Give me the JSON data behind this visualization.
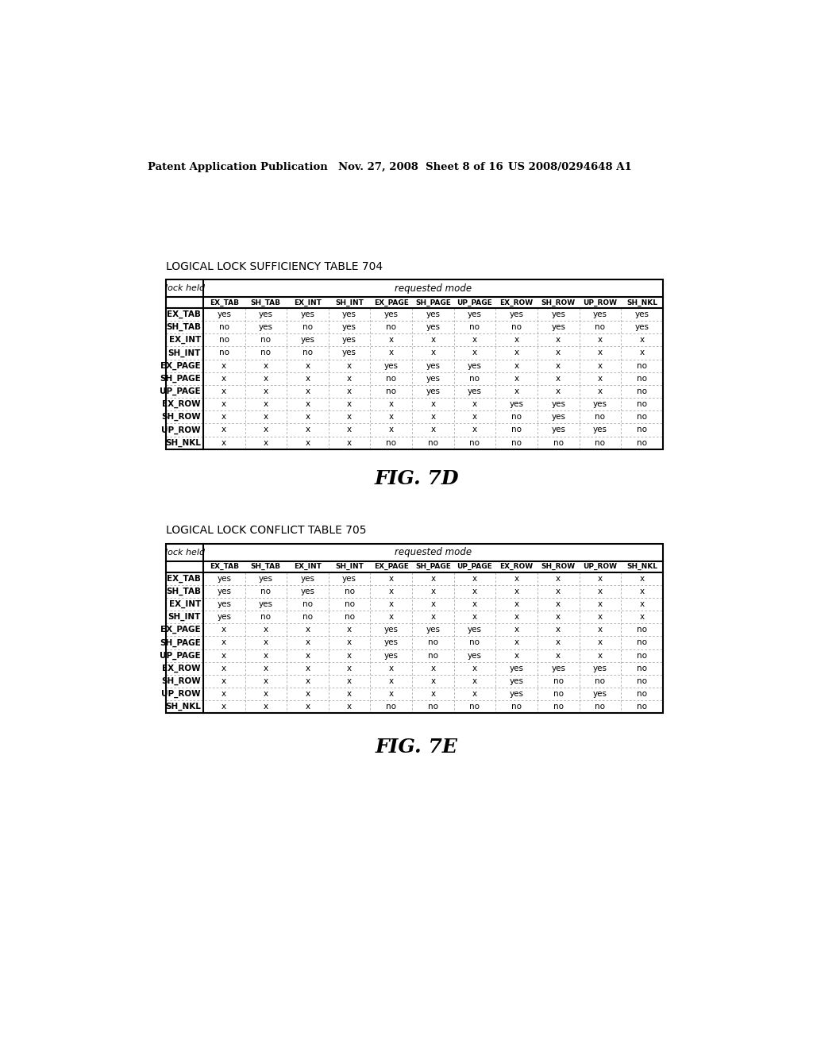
{
  "header_left": "Patent Application Publication",
  "header_mid": "Nov. 27, 2008  Sheet 8 of 16",
  "header_right": "US 2008/0294648 A1",
  "table1_title": "LOGICAL LOCK SUFFICIENCY TABLE 704",
  "table2_title": "LOGICAL LOCK CONFLICT TABLE 705",
  "fig1_label": "FIG. 7D",
  "fig2_label": "FIG. 7E",
  "col_headers": [
    "EX_TAB",
    "SH_TAB",
    "EX_INT",
    "SH_INT",
    "EX_PAGE",
    "SH_PAGE",
    "UP_PAGE",
    "EX_ROW",
    "SH_ROW",
    "UP_ROW",
    "SH_NKL"
  ],
  "row_labels": [
    "EX_TAB",
    "SH_TAB",
    "EX_INT",
    "SH_INT",
    "EX_PAGE",
    "SH_PAGE",
    "UP_PAGE",
    "EX_ROW",
    "SH_ROW",
    "UP_ROW",
    "SH_NKL"
  ],
  "table1_data": [
    [
      "yes",
      "yes",
      "yes",
      "yes",
      "yes",
      "yes",
      "yes",
      "yes",
      "yes",
      "yes",
      "yes"
    ],
    [
      "no",
      "yes",
      "no",
      "yes",
      "no",
      "yes",
      "no",
      "no",
      "yes",
      "no",
      "yes"
    ],
    [
      "no",
      "no",
      "yes",
      "yes",
      "x",
      "x",
      "x",
      "x",
      "x",
      "x",
      "x"
    ],
    [
      "no",
      "no",
      "no",
      "yes",
      "x",
      "x",
      "x",
      "x",
      "x",
      "x",
      "x"
    ],
    [
      "x",
      "x",
      "x",
      "x",
      "yes",
      "yes",
      "yes",
      "x",
      "x",
      "x",
      "no"
    ],
    [
      "x",
      "x",
      "x",
      "x",
      "no",
      "yes",
      "no",
      "x",
      "x",
      "x",
      "no"
    ],
    [
      "x",
      "x",
      "x",
      "x",
      "no",
      "yes",
      "yes",
      "x",
      "x",
      "x",
      "no"
    ],
    [
      "x",
      "x",
      "x",
      "x",
      "x",
      "x",
      "x",
      "yes",
      "yes",
      "yes",
      "no"
    ],
    [
      "x",
      "x",
      "x",
      "x",
      "x",
      "x",
      "x",
      "no",
      "yes",
      "no",
      "no"
    ],
    [
      "x",
      "x",
      "x",
      "x",
      "x",
      "x",
      "x",
      "no",
      "yes",
      "yes",
      "no"
    ],
    [
      "x",
      "x",
      "x",
      "x",
      "no",
      "no",
      "no",
      "no",
      "no",
      "no",
      "no"
    ]
  ],
  "table2_data": [
    [
      "yes",
      "yes",
      "yes",
      "yes",
      "x",
      "x",
      "x",
      "x",
      "x",
      "x",
      "x"
    ],
    [
      "yes",
      "no",
      "yes",
      "no",
      "x",
      "x",
      "x",
      "x",
      "x",
      "x",
      "x"
    ],
    [
      "yes",
      "yes",
      "no",
      "no",
      "x",
      "x",
      "x",
      "x",
      "x",
      "x",
      "x"
    ],
    [
      "yes",
      "no",
      "no",
      "no",
      "x",
      "x",
      "x",
      "x",
      "x",
      "x",
      "x"
    ],
    [
      "x",
      "x",
      "x",
      "x",
      "yes",
      "yes",
      "yes",
      "x",
      "x",
      "x",
      "no"
    ],
    [
      "x",
      "x",
      "x",
      "x",
      "yes",
      "no",
      "no",
      "x",
      "x",
      "x",
      "no"
    ],
    [
      "x",
      "x",
      "x",
      "x",
      "yes",
      "no",
      "yes",
      "x",
      "x",
      "x",
      "no"
    ],
    [
      "x",
      "x",
      "x",
      "x",
      "x",
      "x",
      "x",
      "yes",
      "yes",
      "yes",
      "no"
    ],
    [
      "x",
      "x",
      "x",
      "x",
      "x",
      "x",
      "x",
      "yes",
      "no",
      "no",
      "no"
    ],
    [
      "x",
      "x",
      "x",
      "x",
      "x",
      "x",
      "x",
      "yes",
      "no",
      "yes",
      "no"
    ],
    [
      "x",
      "x",
      "x",
      "x",
      "no",
      "no",
      "no",
      "no",
      "no",
      "no",
      "no"
    ]
  ],
  "background_color": "#ffffff",
  "text_color": "#000000",
  "table_border_color": "#000000",
  "inner_line_color": "#999999"
}
